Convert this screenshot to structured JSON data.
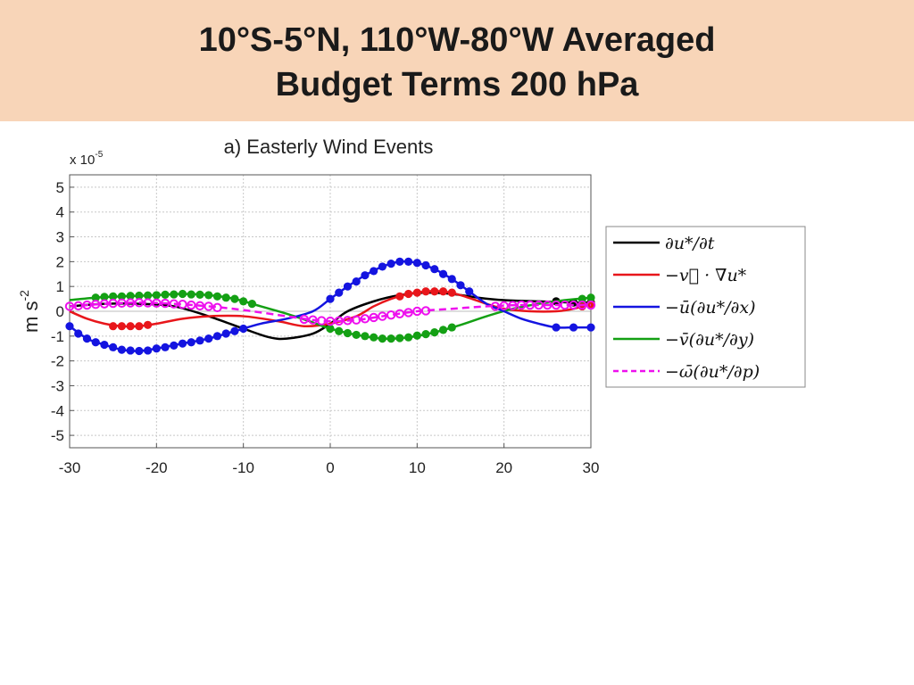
{
  "slide": {
    "title_line1": "10°S-5°N, 110°W-80°W Averaged",
    "title_line2": "Budget Terms 200 hPa",
    "banner_color": "#f8d5b8"
  },
  "chart_data": {
    "type": "line",
    "title": "a) Easterly Wind Events",
    "xlabel": "",
    "ylabel": "m s",
    "ylabel_superscript": "-2",
    "y_multiplier_label": "x 10",
    "y_multiplier_exponent": "-5",
    "xlim": [
      -30,
      30
    ],
    "ylim": [
      -5.5,
      5.5
    ],
    "xticks": [
      -30,
      -20,
      -10,
      0,
      10,
      20,
      30
    ],
    "yticks": [
      -5,
      -4,
      -3,
      -2,
      -1,
      0,
      1,
      2,
      3,
      4,
      5
    ],
    "grid": true,
    "legend_position": "right",
    "marker_note": "filled dots mark statistically significant points",
    "series": [
      {
        "name": "∂u*/∂t",
        "color": "#000000",
        "dashed": false,
        "points": [
          [
            -30,
            0.2
          ],
          [
            -26,
            0.3
          ],
          [
            -22,
            0.3
          ],
          [
            -18,
            0.2
          ],
          [
            -14,
            -0.2
          ],
          [
            -10,
            -0.7
          ],
          [
            -7,
            -1.05
          ],
          [
            -5,
            -1.1
          ],
          [
            -2,
            -0.9
          ],
          [
            0,
            -0.5
          ],
          [
            2,
            0
          ],
          [
            5,
            0.4
          ],
          [
            8,
            0.65
          ],
          [
            11,
            0.75
          ],
          [
            14,
            0.7
          ],
          [
            17,
            0.55
          ],
          [
            20,
            0.45
          ],
          [
            24,
            0.4
          ],
          [
            28,
            0.35
          ],
          [
            30,
            0.35
          ]
        ],
        "markers": [
          [
            26,
            0.4
          ],
          [
            28,
            0.35
          ],
          [
            30,
            0.35
          ]
        ]
      },
      {
        "name": "−v⃗ · ∇u*",
        "color": "#e8161b",
        "dashed": false,
        "points": [
          [
            -30,
            0
          ],
          [
            -28,
            -0.3
          ],
          [
            -26,
            -0.5
          ],
          [
            -24,
            -0.6
          ],
          [
            -22,
            -0.6
          ],
          [
            -20,
            -0.5
          ],
          [
            -17,
            -0.3
          ],
          [
            -14,
            -0.2
          ],
          [
            -10,
            -0.2
          ],
          [
            -6,
            -0.4
          ],
          [
            -3,
            -0.6
          ],
          [
            0,
            -0.5
          ],
          [
            3,
            -0.2
          ],
          [
            5,
            0.2
          ],
          [
            7,
            0.5
          ],
          [
            9,
            0.7
          ],
          [
            11,
            0.8
          ],
          [
            13,
            0.8
          ],
          [
            15,
            0.65
          ],
          [
            18,
            0.3
          ],
          [
            20,
            0.1
          ],
          [
            23,
            0
          ],
          [
            26,
            0
          ],
          [
            28,
            0.1
          ],
          [
            30,
            0.3
          ]
        ],
        "markers": [
          [
            -25,
            -0.6
          ],
          [
            -24,
            -0.6
          ],
          [
            -23,
            -0.6
          ],
          [
            -22,
            -0.6
          ],
          [
            -21,
            -0.55
          ],
          [
            8,
            0.6
          ],
          [
            9,
            0.7
          ],
          [
            10,
            0.75
          ],
          [
            11,
            0.8
          ],
          [
            12,
            0.8
          ],
          [
            13,
            0.8
          ],
          [
            14,
            0.75
          ],
          [
            29,
            0.2
          ],
          [
            30,
            0.3
          ]
        ]
      },
      {
        "name": "−ū(∂u*/∂x)",
        "color": "#1414e0",
        "dashed": false,
        "points": [
          [
            -30,
            -0.6
          ],
          [
            -28,
            -1.1
          ],
          [
            -26,
            -1.35
          ],
          [
            -24,
            -1.55
          ],
          [
            -22,
            -1.6
          ],
          [
            -20,
            -1.5
          ],
          [
            -17,
            -1.3
          ],
          [
            -14,
            -1.1
          ],
          [
            -11,
            -0.8
          ],
          [
            -8,
            -0.5
          ],
          [
            -5,
            -0.3
          ],
          [
            -2,
            0
          ],
          [
            0,
            0.5
          ],
          [
            2,
            1.0
          ],
          [
            4,
            1.45
          ],
          [
            6,
            1.8
          ],
          [
            8,
            2.0
          ],
          [
            10,
            1.95
          ],
          [
            12,
            1.7
          ],
          [
            14,
            1.3
          ],
          [
            16,
            0.8
          ],
          [
            18,
            0.3
          ],
          [
            20,
            0
          ],
          [
            22,
            -0.3
          ],
          [
            24,
            -0.5
          ],
          [
            26,
            -0.65
          ],
          [
            28,
            -0.65
          ],
          [
            30,
            -0.65
          ]
        ],
        "markers": [
          [
            -30,
            -0.6
          ],
          [
            -29,
            -0.9
          ],
          [
            -28,
            -1.1
          ],
          [
            -27,
            -1.25
          ],
          [
            -26,
            -1.35
          ],
          [
            -25,
            -1.45
          ],
          [
            -24,
            -1.55
          ],
          [
            -23,
            -1.58
          ],
          [
            -22,
            -1.6
          ],
          [
            -21,
            -1.58
          ],
          [
            -20,
            -1.5
          ],
          [
            -19,
            -1.45
          ],
          [
            -18,
            -1.38
          ],
          [
            -17,
            -1.3
          ],
          [
            -16,
            -1.25
          ],
          [
            -15,
            -1.18
          ],
          [
            -14,
            -1.1
          ],
          [
            -13,
            -1.0
          ],
          [
            -12,
            -0.9
          ],
          [
            -11,
            -0.8
          ],
          [
            -10,
            -0.7
          ],
          [
            0,
            0.5
          ],
          [
            1,
            0.75
          ],
          [
            2,
            1.0
          ],
          [
            3,
            1.2
          ],
          [
            4,
            1.45
          ],
          [
            5,
            1.62
          ],
          [
            6,
            1.8
          ],
          [
            7,
            1.92
          ],
          [
            8,
            2.0
          ],
          [
            9,
            2.0
          ],
          [
            10,
            1.95
          ],
          [
            11,
            1.85
          ],
          [
            12,
            1.7
          ],
          [
            13,
            1.5
          ],
          [
            14,
            1.3
          ],
          [
            15,
            1.05
          ],
          [
            16,
            0.8
          ],
          [
            26,
            -0.65
          ],
          [
            28,
            -0.65
          ],
          [
            30,
            -0.65
          ]
        ]
      },
      {
        "name": "−v̄(∂u*/∂y)",
        "color": "#14a014",
        "dashed": false,
        "points": [
          [
            -30,
            0.45
          ],
          [
            -27,
            0.55
          ],
          [
            -24,
            0.6
          ],
          [
            -20,
            0.65
          ],
          [
            -17,
            0.7
          ],
          [
            -14,
            0.65
          ],
          [
            -11,
            0.5
          ],
          [
            -8,
            0.2
          ],
          [
            -5,
            -0.1
          ],
          [
            -2,
            -0.45
          ],
          [
            0,
            -0.7
          ],
          [
            3,
            -0.95
          ],
          [
            6,
            -1.1
          ],
          [
            9,
            -1.05
          ],
          [
            12,
            -0.85
          ],
          [
            15,
            -0.55
          ],
          [
            18,
            -0.2
          ],
          [
            21,
            0.1
          ],
          [
            24,
            0.3
          ],
          [
            27,
            0.45
          ],
          [
            30,
            0.55
          ]
        ],
        "markers": [
          [
            -27,
            0.55
          ],
          [
            -26,
            0.58
          ],
          [
            -25,
            0.6
          ],
          [
            -24,
            0.6
          ],
          [
            -23,
            0.62
          ],
          [
            -22,
            0.63
          ],
          [
            -21,
            0.64
          ],
          [
            -20,
            0.65
          ],
          [
            -19,
            0.67
          ],
          [
            -18,
            0.68
          ],
          [
            -17,
            0.7
          ],
          [
            -16,
            0.68
          ],
          [
            -15,
            0.67
          ],
          [
            -14,
            0.65
          ],
          [
            -13,
            0.6
          ],
          [
            -12,
            0.55
          ],
          [
            -11,
            0.5
          ],
          [
            -10,
            0.4
          ],
          [
            -9,
            0.3
          ],
          [
            0,
            -0.7
          ],
          [
            1,
            -0.8
          ],
          [
            2,
            -0.88
          ],
          [
            3,
            -0.95
          ],
          [
            4,
            -1.0
          ],
          [
            5,
            -1.05
          ],
          [
            6,
            -1.1
          ],
          [
            7,
            -1.1
          ],
          [
            8,
            -1.08
          ],
          [
            9,
            -1.05
          ],
          [
            10,
            -0.98
          ],
          [
            11,
            -0.92
          ],
          [
            12,
            -0.85
          ],
          [
            13,
            -0.75
          ],
          [
            14,
            -0.65
          ],
          [
            29,
            0.5
          ],
          [
            30,
            0.55
          ]
        ]
      },
      {
        "name": "−ω̄(∂u*/∂p)",
        "color": "#ee10ee",
        "dashed": true,
        "points": [
          [
            -30,
            0.2
          ],
          [
            -26,
            0.3
          ],
          [
            -22,
            0.35
          ],
          [
            -18,
            0.3
          ],
          [
            -14,
            0.2
          ],
          [
            -10,
            0.05
          ],
          [
            -5,
            -0.2
          ],
          [
            -2,
            -0.35
          ],
          [
            0,
            -0.4
          ],
          [
            3,
            -0.35
          ],
          [
            6,
            -0.2
          ],
          [
            10,
            0
          ],
          [
            14,
            0.1
          ],
          [
            18,
            0.2
          ],
          [
            22,
            0.25
          ],
          [
            26,
            0.25
          ],
          [
            30,
            0.25
          ]
        ],
        "markers": [
          [
            -30,
            0.2
          ],
          [
            -29,
            0.22
          ],
          [
            -28,
            0.25
          ],
          [
            -27,
            0.28
          ],
          [
            -26,
            0.3
          ],
          [
            -25,
            0.32
          ],
          [
            -24,
            0.33
          ],
          [
            -23,
            0.34
          ],
          [
            -22,
            0.35
          ],
          [
            -21,
            0.34
          ],
          [
            -20,
            0.33
          ],
          [
            -19,
            0.32
          ],
          [
            -18,
            0.3
          ],
          [
            -17,
            0.28
          ],
          [
            -16,
            0.25
          ],
          [
            -15,
            0.22
          ],
          [
            -14,
            0.2
          ],
          [
            -13,
            0.15
          ],
          [
            -3,
            -0.32
          ],
          [
            -2,
            -0.35
          ],
          [
            -1,
            -0.38
          ],
          [
            0,
            -0.4
          ],
          [
            1,
            -0.39
          ],
          [
            2,
            -0.37
          ],
          [
            3,
            -0.35
          ],
          [
            4,
            -0.3
          ],
          [
            5,
            -0.25
          ],
          [
            6,
            -0.2
          ],
          [
            7,
            -0.15
          ],
          [
            8,
            -0.1
          ],
          [
            9,
            -0.05
          ],
          [
            10,
            0
          ],
          [
            11,
            0.02
          ],
          [
            19,
            0.2
          ],
          [
            20,
            0.22
          ],
          [
            21,
            0.23
          ],
          [
            22,
            0.25
          ],
          [
            23,
            0.25
          ],
          [
            24,
            0.25
          ],
          [
            25,
            0.25
          ],
          [
            26,
            0.25
          ],
          [
            27,
            0.25
          ],
          [
            28,
            0.25
          ],
          [
            29,
            0.25
          ],
          [
            30,
            0.25
          ]
        ]
      }
    ]
  }
}
